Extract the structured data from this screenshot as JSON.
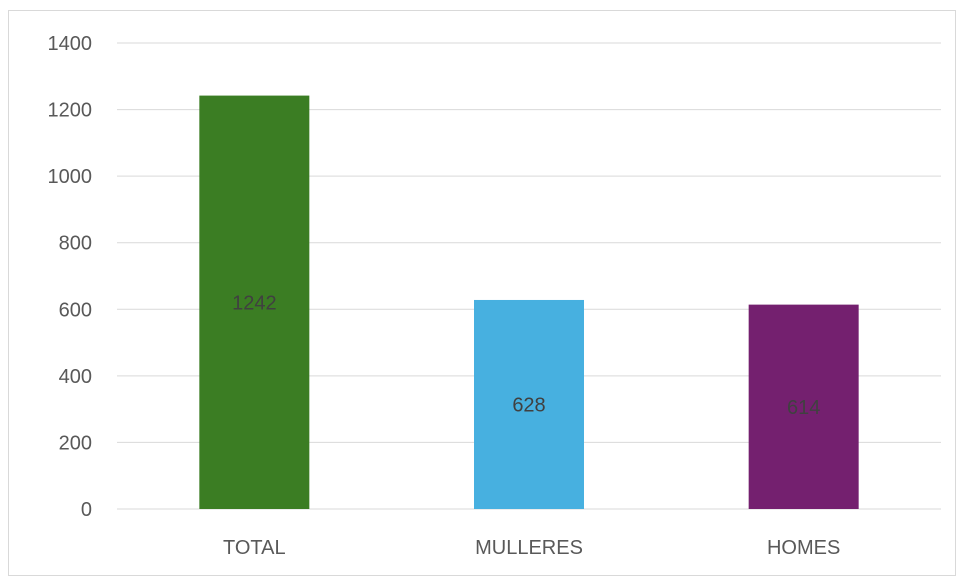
{
  "chart_data": {
    "type": "bar",
    "categories": [
      "TOTAL",
      "MULLERES",
      "HOMES"
    ],
    "values": [
      1242,
      628,
      614
    ],
    "data_labels": [
      "1242",
      "628",
      "614"
    ],
    "colors": [
      "#3b7d23",
      "#47b0e0",
      "#74206f"
    ],
    "ylim": [
      0,
      1400
    ],
    "yticks": [
      0,
      200,
      400,
      600,
      800,
      1000,
      1200,
      1400
    ],
    "ytick_labels": [
      "0",
      "200",
      "400",
      "600",
      "800",
      "1000",
      "1200",
      "1400"
    ],
    "grid": true,
    "legend": "none",
    "title": "",
    "xlabel": "",
    "ylabel": ""
  }
}
